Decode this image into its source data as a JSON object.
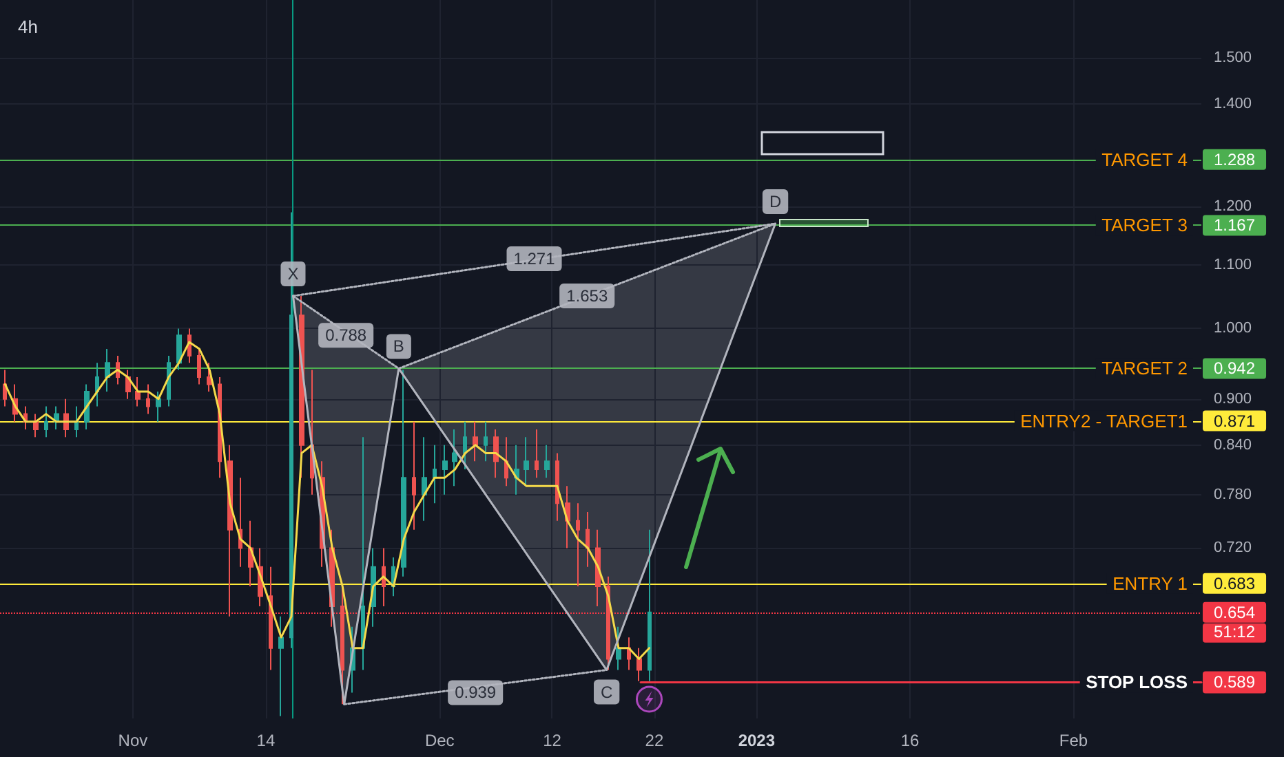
{
  "chart_data": {
    "type": "candlestick",
    "title": "4h",
    "x": [
      "2022-10-19T12:00",
      "2022-10-20T12:00",
      "2022-10-21T12:00",
      "2022-10-22T12:00",
      "2022-10-23T12:00",
      "2022-10-24T12:00",
      "2022-10-25T12:00",
      "2022-10-26T12:00",
      "2022-10-27T12:00",
      "2022-10-28T12:00",
      "2022-10-29T12:00",
      "2022-10-30T12:00",
      "2022-10-31T12:00",
      "2022-11-01T12:00",
      "2022-11-02T12:00",
      "2022-11-03T12:00",
      "2022-11-04T12:00",
      "2022-11-05T12:00",
      "2022-11-06T12:00",
      "2022-11-07T12:00",
      "2022-11-08T12:00",
      "2022-11-09T12:00",
      "2022-11-10T12:00",
      "2022-11-11T12:00",
      "2022-11-12T12:00",
      "2022-11-13T12:00",
      "2022-11-14T12:00",
      "2022-11-15T12:00",
      "2022-11-16T12:00",
      "2022-11-17T12:00",
      "2022-11-18T12:00",
      "2022-11-19T12:00",
      "2022-11-20T12:00",
      "2022-11-21T12:00",
      "2022-11-22T12:00",
      "2022-11-23T12:00",
      "2022-11-24T12:00",
      "2022-11-25T12:00",
      "2022-11-26T12:00",
      "2022-11-27T12:00",
      "2022-11-28T12:00",
      "2022-11-29T12:00",
      "2022-11-30T12:00",
      "2022-12-01T12:00",
      "2022-12-02T12:00",
      "2022-12-03T12:00",
      "2022-12-04T12:00",
      "2022-12-05T12:00",
      "2022-12-06T12:00",
      "2022-12-07T12:00",
      "2022-12-08T12:00",
      "2022-12-09T12:00",
      "2022-12-10T12:00",
      "2022-12-11T12:00",
      "2022-12-12T12:00",
      "2022-12-13T12:00",
      "2022-12-14T12:00",
      "2022-12-15T12:00",
      "2022-12-16T12:00",
      "2022-12-17T12:00",
      "2022-12-18T12:00",
      "2022-12-19T12:00",
      "2022-12-20T12:00",
      "2022-12-21T12:00"
    ],
    "ohlc": [
      [
        0.92,
        0.94,
        0.89,
        0.9
      ],
      [
        0.9,
        0.92,
        0.87,
        0.88
      ],
      [
        0.88,
        0.89,
        0.86,
        0.87
      ],
      [
        0.87,
        0.88,
        0.85,
        0.86
      ],
      [
        0.86,
        0.89,
        0.85,
        0.87
      ],
      [
        0.87,
        0.89,
        0.86,
        0.88
      ],
      [
        0.88,
        0.9,
        0.85,
        0.86
      ],
      [
        0.86,
        0.89,
        0.85,
        0.87
      ],
      [
        0.87,
        0.92,
        0.86,
        0.91
      ],
      [
        0.91,
        0.95,
        0.89,
        0.93
      ],
      [
        0.93,
        0.97,
        0.91,
        0.95
      ],
      [
        0.95,
        0.96,
        0.92,
        0.93
      ],
      [
        0.93,
        0.94,
        0.9,
        0.91
      ],
      [
        0.91,
        0.93,
        0.89,
        0.9
      ],
      [
        0.9,
        0.92,
        0.88,
        0.89
      ],
      [
        0.89,
        0.91,
        0.87,
        0.9
      ],
      [
        0.9,
        0.96,
        0.89,
        0.95
      ],
      [
        0.95,
        1.0,
        0.94,
        0.99
      ],
      [
        0.99,
        1.0,
        0.95,
        0.96
      ],
      [
        0.96,
        0.97,
        0.92,
        0.93
      ],
      [
        0.93,
        0.95,
        0.91,
        0.92
      ],
      [
        0.92,
        0.93,
        0.8,
        0.82
      ],
      [
        0.82,
        0.84,
        0.65,
        0.74
      ],
      [
        0.74,
        0.8,
        0.7,
        0.72
      ],
      [
        0.72,
        0.75,
        0.68,
        0.7
      ],
      [
        0.7,
        0.72,
        0.66,
        0.67
      ],
      [
        0.67,
        0.7,
        0.6,
        0.62
      ],
      [
        0.62,
        0.65,
        0.56,
        0.63
      ],
      [
        0.63,
        1.19,
        0.62,
        1.02
      ],
      [
        1.02,
        1.05,
        0.8,
        0.84
      ],
      [
        0.84,
        0.94,
        0.78,
        0.8
      ],
      [
        0.8,
        0.82,
        0.7,
        0.72
      ],
      [
        0.72,
        0.74,
        0.64,
        0.66
      ],
      [
        0.66,
        0.68,
        0.57,
        0.6
      ],
      [
        0.6,
        0.64,
        0.58,
        0.62
      ],
      [
        0.62,
        0.85,
        0.6,
        0.66
      ],
      [
        0.66,
        0.72,
        0.64,
        0.7
      ],
      [
        0.7,
        0.72,
        0.66,
        0.68
      ],
      [
        0.68,
        0.71,
        0.67,
        0.7
      ],
      [
        0.7,
        0.94,
        0.69,
        0.8
      ],
      [
        0.8,
        0.87,
        0.74,
        0.78
      ],
      [
        0.78,
        0.85,
        0.75,
        0.8
      ],
      [
        0.8,
        0.84,
        0.77,
        0.81
      ],
      [
        0.81,
        0.84,
        0.78,
        0.82
      ],
      [
        0.82,
        0.86,
        0.79,
        0.83
      ],
      [
        0.83,
        0.87,
        0.81,
        0.85
      ],
      [
        0.85,
        0.87,
        0.82,
        0.84
      ],
      [
        0.84,
        0.87,
        0.82,
        0.85
      ],
      [
        0.85,
        0.86,
        0.8,
        0.82
      ],
      [
        0.82,
        0.85,
        0.79,
        0.8
      ],
      [
        0.8,
        0.84,
        0.78,
        0.81
      ],
      [
        0.81,
        0.85,
        0.79,
        0.82
      ],
      [
        0.82,
        0.86,
        0.8,
        0.81
      ],
      [
        0.81,
        0.84,
        0.8,
        0.82
      ],
      [
        0.82,
        0.83,
        0.75,
        0.77
      ],
      [
        0.77,
        0.79,
        0.72,
        0.75
      ],
      [
        0.75,
        0.77,
        0.68,
        0.74
      ],
      [
        0.74,
        0.76,
        0.7,
        0.72
      ],
      [
        0.72,
        0.74,
        0.66,
        0.68
      ],
      [
        0.68,
        0.69,
        0.6,
        0.61
      ],
      [
        0.61,
        0.64,
        0.6,
        0.62
      ],
      [
        0.62,
        0.63,
        0.6,
        0.61
      ],
      [
        0.61,
        0.62,
        0.59,
        0.6
      ],
      [
        0.6,
        0.74,
        0.59,
        0.654
      ]
    ],
    "colors": [
      "#ef5350",
      "#ef5350",
      "#ef5350",
      "#ef5350",
      "#26a69a",
      "#26a69a",
      "#ef5350",
      "#26a69a",
      "#26a69a",
      "#26a69a",
      "#26a69a",
      "#ef5350",
      "#ef5350",
      "#ef5350",
      "#ef5350",
      "#26a69a",
      "#26a69a",
      "#26a69a",
      "#ef5350",
      "#ef5350",
      "#ef5350",
      "#ef5350",
      "#ef5350",
      "#ef5350",
      "#ef5350",
      "#ef5350",
      "#ef5350",
      "#26a69a",
      "#26a69a",
      "#ef5350",
      "#ef5350",
      "#ef5350",
      "#ef5350",
      "#ef5350",
      "#26a69a",
      "#26a69a",
      "#26a69a",
      "#ef5350",
      "#26a69a",
      "#26a69a",
      "#ef5350",
      "#26a69a",
      "#26a69a",
      "#26a69a",
      "#26a69a",
      "#26a69a",
      "#ef5350",
      "#26a69a",
      "#ef5350",
      "#ef5350",
      "#26a69a",
      "#26a69a",
      "#ef5350",
      "#26a69a",
      "#ef5350",
      "#ef5350",
      "#ef5350",
      "#ef5350",
      "#ef5350",
      "#ef5350",
      "#26a69a",
      "#ef5350",
      "#ef5350",
      "#26a69a"
    ],
    "series": [
      {
        "type": "line",
        "color": "#f5d94a",
        "values": [
          0.92,
          0.89,
          0.87,
          0.87,
          0.88,
          0.87,
          0.87,
          0.87,
          0.89,
          0.91,
          0.93,
          0.94,
          0.93,
          0.91,
          0.91,
          0.9,
          0.93,
          0.95,
          0.98,
          0.97,
          0.94,
          0.88,
          0.77,
          0.73,
          0.72,
          0.69,
          0.66,
          0.63,
          0.65,
          0.83,
          0.84,
          0.79,
          0.72,
          0.68,
          0.62,
          0.62,
          0.68,
          0.69,
          0.68,
          0.73,
          0.76,
          0.78,
          0.8,
          0.8,
          0.81,
          0.83,
          0.84,
          0.83,
          0.83,
          0.82,
          0.8,
          0.79,
          0.79,
          0.79,
          0.79,
          0.75,
          0.73,
          0.72,
          0.7,
          0.67,
          0.62,
          0.62,
          0.61,
          0.62
        ]
      },
      {
        "type": "line",
        "color": "#b2b5be",
        "x": [
          "2022-11-16T16:00",
          "2022-11-21T16:00",
          "2022-11-27T00:00",
          "2022-12-17T08:00",
          "2023-01-02T20:00"
        ],
        "values": [
          1.05,
          0.57,
          0.942,
          0.6,
          1.17
        ]
      },
      {
        "type": "line",
        "color": "#b2b5be",
        "line_style": "dotted",
        "x": [
          "2022-11-16T16:00",
          "2022-11-27T00:00"
        ],
        "values": [
          1.05,
          0.942
        ]
      },
      {
        "type": "line",
        "color": "#b2b5be",
        "line_style": "dotted",
        "x": [
          "2022-11-21T16:00",
          "2022-12-17T08:00"
        ],
        "values": [
          0.57,
          0.6
        ]
      },
      {
        "type": "line",
        "color": "#b2b5be",
        "line_style": "dotted",
        "x": [
          "2022-11-16T16:00",
          "2023-01-02T20:00"
        ],
        "values": [
          1.05,
          1.17
        ]
      },
      {
        "type": "line",
        "color": "#b2b5be",
        "line_style": "dotted",
        "x": [
          "2022-11-27T00:00",
          "2023-01-02T20:00"
        ],
        "values": [
          0.942,
          1.17
        ]
      },
      {
        "type": "line",
        "name": "STOP LOSS",
        "color": "#f23645",
        "x": [
          "2022-12-20T16:00",
          "2023-02-13T12:00"
        ],
        "values": [
          0.589,
          0.589
        ],
        "value_labels": [
          null,
          "0.589"
        ]
      }
    ],
    "xlim": [
      "2022-10-19",
      "2023-02-13T12:00"
    ],
    "xticks": [
      {
        "value": "2022-11-01",
        "label": "Nov"
      },
      {
        "value": "2022-11-14",
        "label": "14"
      },
      {
        "value": "2022-12-01",
        "label": "Dec"
      },
      {
        "value": "2022-12-12",
        "label": "12"
      },
      {
        "value": "2022-12-22",
        "label": "22"
      },
      {
        "value": "2023-01-01",
        "label": "2023"
      },
      {
        "value": "2023-01-16",
        "label": "16"
      },
      {
        "value": "2023-02-01",
        "label": "Feb"
      }
    ],
    "ylim": [
      0.558,
      1.635
    ],
    "yticks": [
      {
        "value": 0.72,
        "label": "0.720"
      },
      {
        "value": 0.78,
        "label": "0.780"
      },
      {
        "value": 0.84,
        "label": "0.840"
      },
      {
        "value": 0.9,
        "label": "0.900"
      },
      {
        "value": 1,
        "label": "1.000"
      },
      {
        "value": 1.1,
        "label": "1.100"
      },
      {
        "value": 1.2,
        "label": "1.200"
      },
      {
        "value": 1.4,
        "label": "1.400"
      },
      {
        "value": 1.5,
        "label": "1.500"
      }
    ],
    "log": "y",
    "grid": true,
    "marker": "none",
    "ref_lines": [
      {
        "axis": "y",
        "value": 1.288,
        "label": "TARGET 4",
        "color": "#4caf50"
      },
      {
        "axis": "y",
        "value": 1.167,
        "label": "TARGET 3",
        "color": "#4caf50"
      },
      {
        "axis": "y",
        "value": 0.942,
        "label": "TARGET 2",
        "color": "#4caf50"
      },
      {
        "axis": "y",
        "value": 0.871,
        "label": "ENTRY2 - TARGET1",
        "color": "#ffeb3b"
      },
      {
        "axis": "y",
        "value": 0.683,
        "label": "ENTRY 1",
        "color": "#ffeb3b"
      },
      {
        "axis": "y",
        "value": 0.654,
        "color": "#f23645",
        "line_style": "dotted"
      },
      {
        "axis": "x",
        "value": "2022-11-16T16:00",
        "color": "#089981"
      }
    ],
    "annotations": [
      {
        "text": "X",
        "x": "2022-11-16T16:00",
        "y": 1.05
      },
      {
        "text": "B",
        "x": "2022-11-27T00:00",
        "y": 0.942
      },
      {
        "text": "C",
        "x": "2022-12-17T08:00",
        "y": 0.6
      },
      {
        "text": "D",
        "x": "2023-01-02T20:00",
        "y": 1.17
      },
      {
        "text": "0.788",
        "x": "2022-11-21T20:00",
        "y": 0.99
      },
      {
        "text": "1.271",
        "x": "2022-12-10T06:00",
        "y": 1.11
      },
      {
        "text": "1.653",
        "x": "2022-12-15T10:00",
        "y": 1.05
      },
      {
        "text": "0.939",
        "x": "2022-12-04T12:00",
        "y": 0.58
      },
      {
        "text": "1.288",
        "x": "2023-02-13T12:00",
        "y": 1.288
      },
      {
        "text": "1.167",
        "x": "2023-02-13T12:00",
        "y": 1.167
      },
      {
        "text": "0.942",
        "x": "2023-02-13T12:00",
        "y": 0.942
      },
      {
        "text": "0.871",
        "x": "2023-02-13T12:00",
        "y": 0.871
      },
      {
        "text": "0.683",
        "x": "2023-02-13T12:00",
        "y": 0.683
      },
      {
        "text": "0.654",
        "x": "2023-02-13T12:00",
        "y": 0.654
      },
      "51:12"
    ]
  }
}
